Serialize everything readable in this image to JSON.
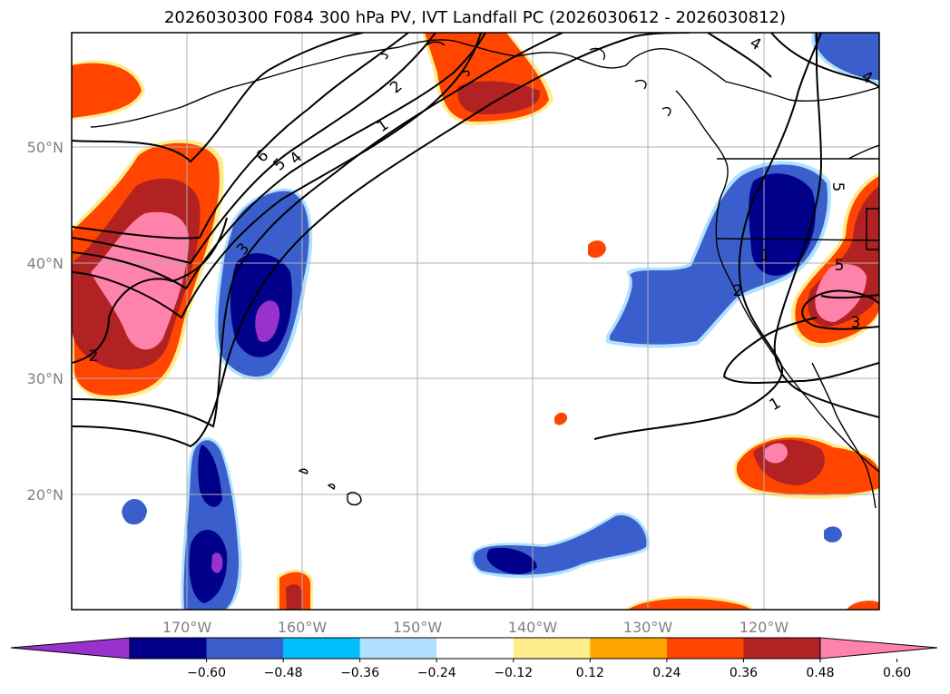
{
  "title": "2026030300 F084 300 hPa PV, IVT Landfall PC (2026030612 - 2026030812)",
  "lat_labels": [
    "50°N",
    "40°N",
    "30°N",
    "20°N"
  ],
  "lon_labels": [
    "170°W",
    "160°W",
    "150°W",
    "140°W",
    "130°W",
    "120°W"
  ],
  "colorbar": {
    "tick_labels": [
      "−0.60",
      "−0.48",
      "−0.36",
      "−0.24",
      "−0.12",
      "0.12",
      "0.24",
      "0.36",
      "0.48",
      "0.60"
    ],
    "colors": [
      "#9932cc",
      "#00008b",
      "#3a5fcd",
      "#00bfff",
      "#b0e2ff",
      "#ffffff",
      "#ffec8b",
      "#ffa500",
      "#ff4500",
      "#b22222",
      "#ff82ab"
    ]
  },
  "contour_labels": [
    "6",
    "5",
    "4",
    "3",
    "2",
    "1",
    "2",
    "1",
    "4",
    "4",
    "5",
    "5",
    "3",
    "1",
    "2"
  ]
}
